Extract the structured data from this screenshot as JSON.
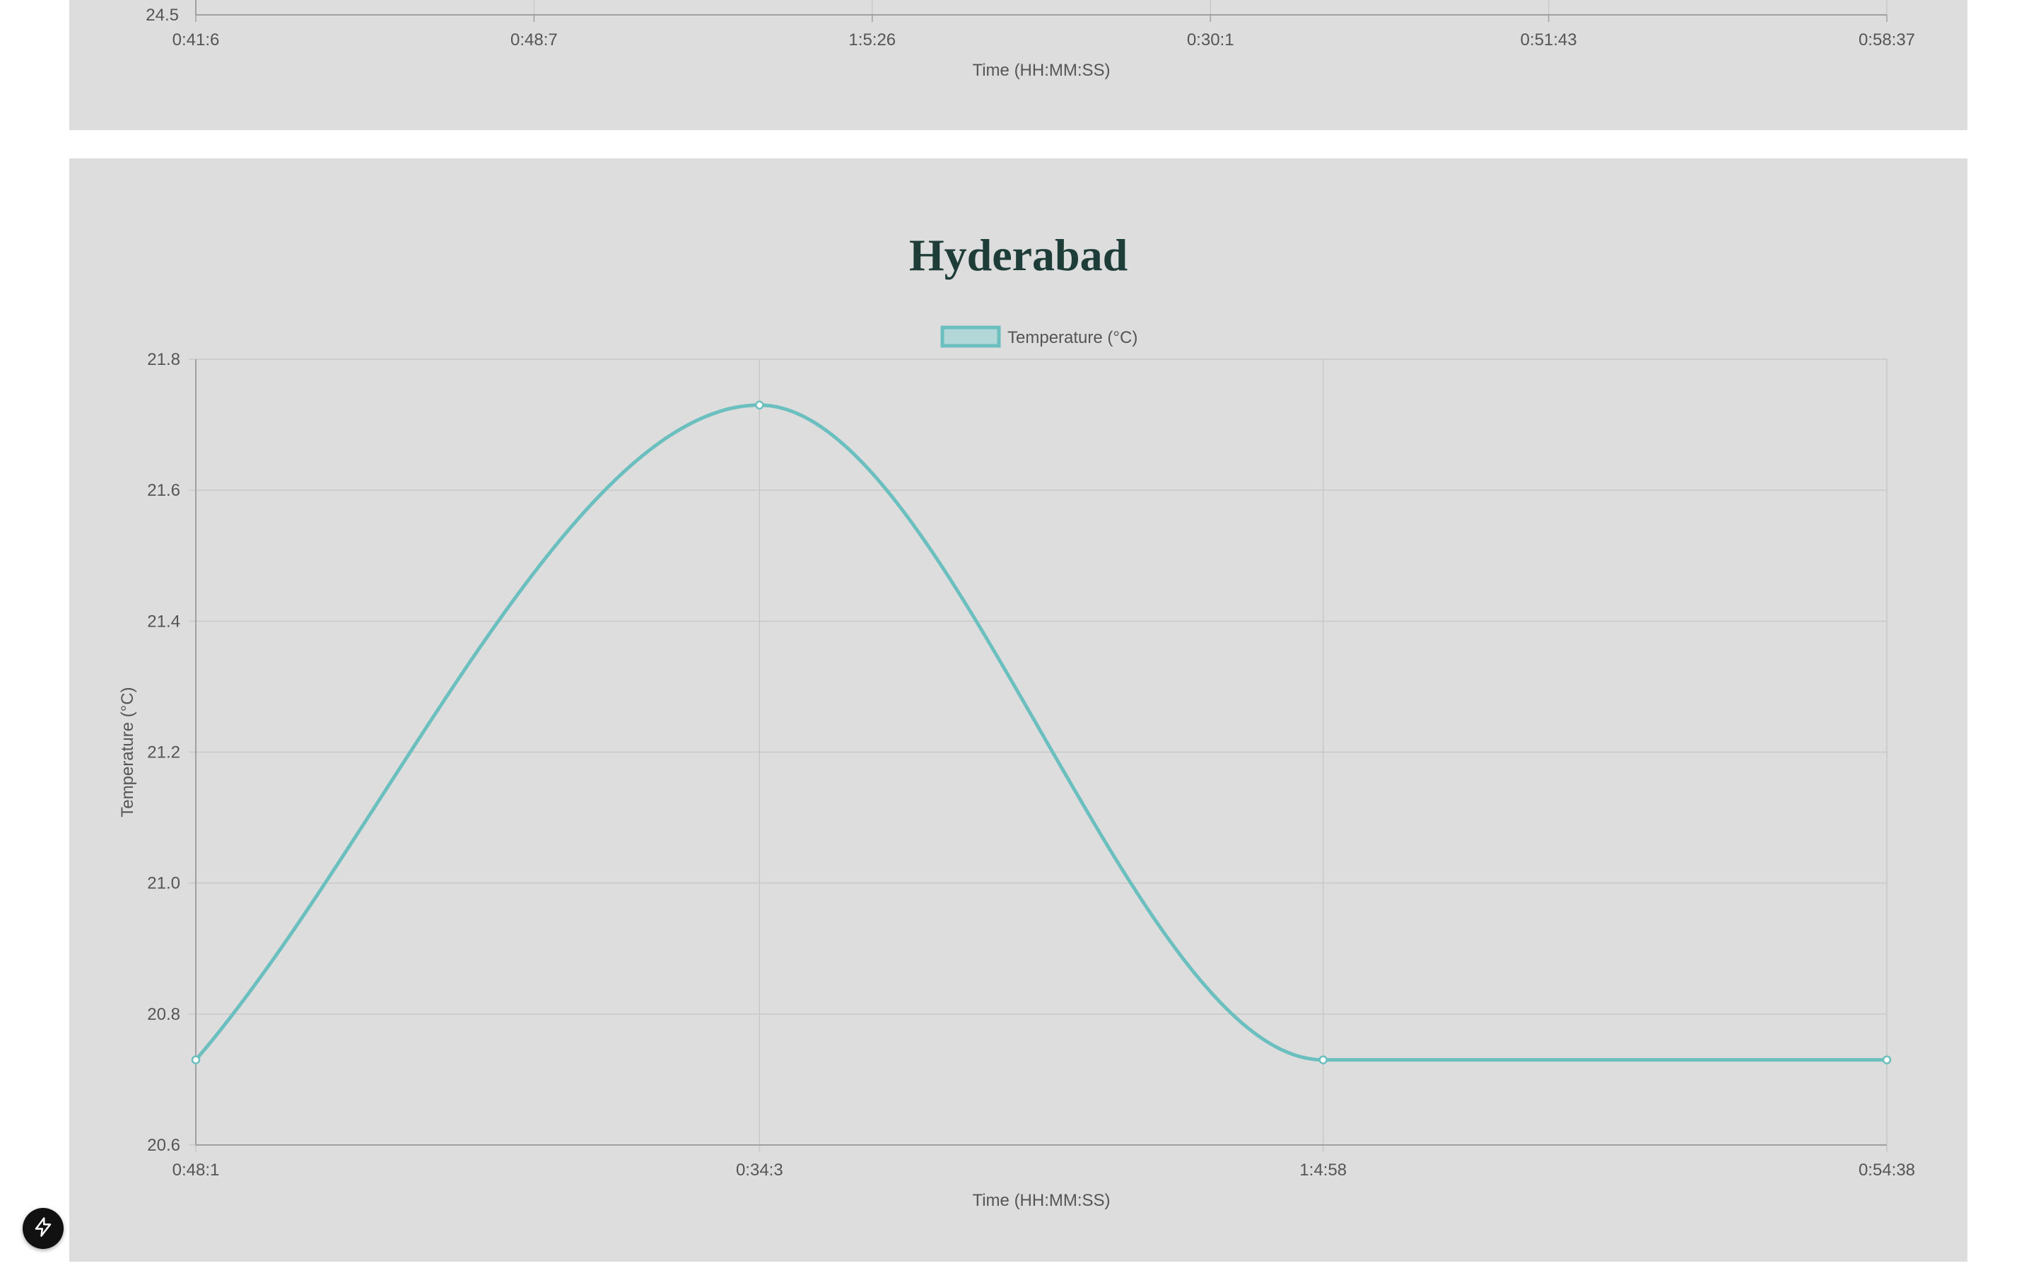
{
  "chart_data": [
    {
      "type": "line",
      "partial": true,
      "xlabel": "Time (HH:MM:SS)",
      "x": [
        "0:41:6",
        "0:48:7",
        "1:5:26",
        "0:30:1",
        "0:51:43",
        "0:58:37"
      ],
      "y_visible_tick": "24.5"
    },
    {
      "type": "line",
      "title": "Hyderabad",
      "xlabel": "Time (HH:MM:SS)",
      "ylabel": "Temperature (°C)",
      "ylim": [
        20.6,
        21.8
      ],
      "yticks": [
        "21.8",
        "21.6",
        "21.4",
        "21.2",
        "21.0",
        "20.8",
        "20.6"
      ],
      "x": [
        "0:48:1",
        "0:34:3",
        "1:4:58",
        "0:54:38"
      ],
      "series": [
        {
          "name": "Temperature (°C)",
          "values": [
            20.73,
            21.73,
            20.73,
            20.73
          ],
          "color": "#6bbfbf",
          "fill": "#b3d6d6"
        }
      ],
      "grid": true,
      "legend": "top-center"
    }
  ],
  "colors": {
    "card_bg": "#dddddd",
    "grid": "#c8c8c8",
    "axis": "#a0a0a0",
    "text": "#555555",
    "title": "#1f3d38",
    "line": "#6bbfbf"
  },
  "fab": {
    "icon": "bolt-icon"
  }
}
